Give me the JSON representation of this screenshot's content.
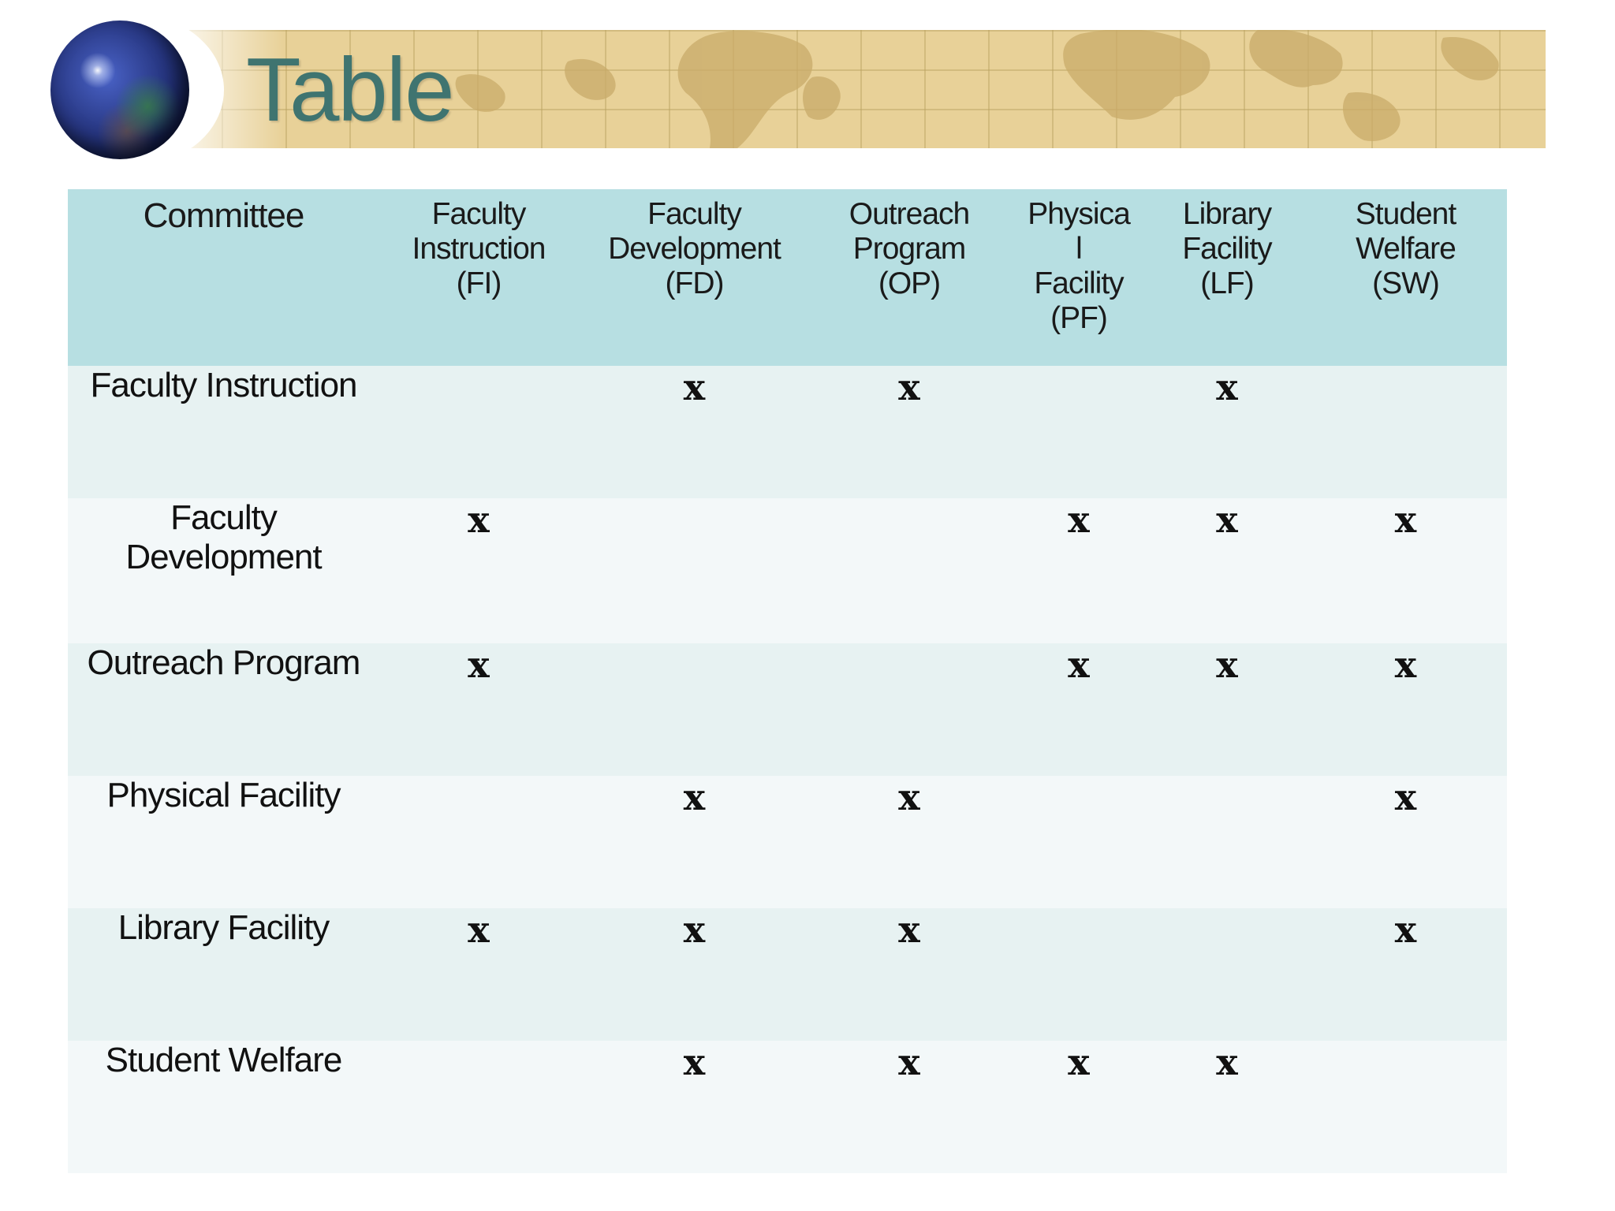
{
  "title": "Table",
  "table": {
    "header": {
      "committee": "Committee",
      "fi": [
        "Faculty",
        "Instruction",
        "(FI)"
      ],
      "fd": [
        "Faculty",
        "Development",
        "(FD)"
      ],
      "op": [
        "Outreach",
        "Program",
        "(OP)"
      ],
      "pf": [
        "Physica",
        "l",
        "Facility",
        "(PF)"
      ],
      "lf": [
        "Library",
        "Facility",
        "(LF)"
      ],
      "sw": [
        "Student",
        "Welfare",
        "(SW)"
      ]
    },
    "rows": [
      {
        "label": [
          "Faculty Instruction"
        ],
        "fi": "",
        "fd": "x",
        "op": "x",
        "pf": "",
        "lf": "x",
        "sw": ""
      },
      {
        "label": [
          "Faculty",
          "Development"
        ],
        "fi": "x",
        "fd": "",
        "op": "",
        "pf": "x",
        "lf": "x",
        "sw": "x"
      },
      {
        "label": [
          "Outreach Program"
        ],
        "fi": "x",
        "fd": "",
        "op": "",
        "pf": "x",
        "lf": "x",
        "sw": "x"
      },
      {
        "label": [
          "Physical Facility"
        ],
        "fi": "",
        "fd": "x",
        "op": "x",
        "pf": "",
        "lf": "",
        "sw": "x"
      },
      {
        "label": [
          "Library Facility"
        ],
        "fi": "x",
        "fd": "x",
        "op": "x",
        "pf": "",
        "lf": "",
        "sw": "x"
      },
      {
        "label": [
          "Student Welfare"
        ],
        "fi": "",
        "fd": "x",
        "op": "x",
        "pf": "x",
        "lf": "x",
        "sw": ""
      }
    ]
  }
}
